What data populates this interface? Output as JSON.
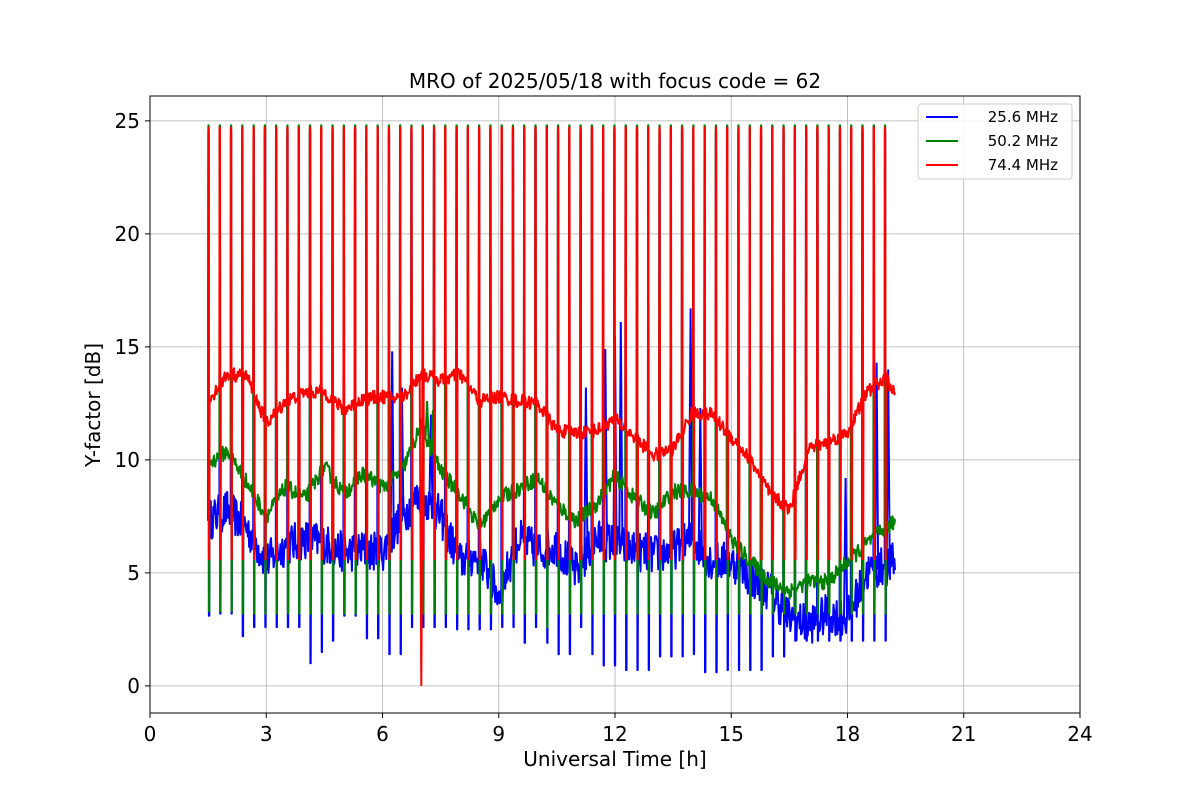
{
  "chart_data": {
    "type": "line",
    "title": "MRO of 2025/05/18 with focus code = 62",
    "xlabel": "Universal Time [h]",
    "ylabel": "Y-factor [dB]",
    "xlim": [
      0,
      24
    ],
    "ylim": [
      -1.2,
      26.1
    ],
    "xticks": [
      0,
      3,
      6,
      9,
      12,
      15,
      18,
      21,
      24
    ],
    "yticks": [
      0,
      5,
      10,
      15,
      20,
      25
    ],
    "grid": true,
    "legend_position": "upper right",
    "x_start": 1.5,
    "x_end": 19.25,
    "sweep_count": 61,
    "series": [
      {
        "name": "25.6 MHz",
        "color": "#0000ff",
        "baseline": {
          "x": [
            1.5,
            2.0,
            2.5,
            3.0,
            3.5,
            4.0,
            4.5,
            5.0,
            5.5,
            6.0,
            6.5,
            7.0,
            7.5,
            8.0,
            8.5,
            9.0,
            9.5,
            10.0,
            10.5,
            11.0,
            11.5,
            12.0,
            12.5,
            13.0,
            13.5,
            14.0,
            14.5,
            15.0,
            15.5,
            16.0,
            16.5,
            17.0,
            17.5,
            18.0,
            18.5,
            19.0,
            19.25
          ],
          "y": [
            7.3,
            7.8,
            7.0,
            5.5,
            6.2,
            6.5,
            6.3,
            5.9,
            6.0,
            5.9,
            7.5,
            8.5,
            7.5,
            5.5,
            5.8,
            4.0,
            6.5,
            6.0,
            6.2,
            5.0,
            6.5,
            6.3,
            6.0,
            5.8,
            6.0,
            6.5,
            5.5,
            5.5,
            4.8,
            4.2,
            3.0,
            2.7,
            3.2,
            3.0,
            5.0,
            5.3,
            5.5
          ]
        },
        "sweep_peak": 24.5,
        "sweep_min": [
          3.1,
          3.2,
          3.2,
          2.2,
          2.6,
          2.6,
          2.6,
          2.6,
          2.6,
          1.0,
          1.5,
          2.0,
          3.1,
          3.1,
          2.1,
          2.1,
          1.4,
          1.4,
          2.6,
          2.6,
          2.6,
          2.6,
          2.5,
          2.5,
          2.5,
          2.5,
          2.6,
          2.6,
          1.9,
          2.6,
          1.9,
          1.4,
          1.4,
          2.6,
          1.4,
          0.9,
          0.9,
          0.7,
          0.7,
          0.7,
          1.3,
          1.3,
          1.3,
          1.4,
          0.6,
          0.6,
          0.7,
          0.7,
          0.7,
          0.7,
          1.3,
          1.3,
          2.0,
          2.0,
          2.0,
          2.0,
          2.0,
          2.0,
          2.0,
          2.0,
          2.0
        ],
        "spikes": [
          {
            "x": 6.25,
            "y": 14.8
          },
          {
            "x": 6.5,
            "y": 13.2
          },
          {
            "x": 11.75,
            "y": 14.9
          },
          {
            "x": 12.15,
            "y": 16.1
          },
          {
            "x": 12.0,
            "y": 15.5
          },
          {
            "x": 13.95,
            "y": 16.7
          },
          {
            "x": 11.25,
            "y": 13.2
          },
          {
            "x": 18.75,
            "y": 14.3
          },
          {
            "x": 19.05,
            "y": 14.0
          },
          {
            "x": 17.95,
            "y": 9.2
          },
          {
            "x": 7.25,
            "y": 12.0
          },
          {
            "x": 14.2,
            "y": 12.3
          }
        ]
      },
      {
        "name": "50.2 MHz",
        "color": "#008000",
        "baseline": {
          "x": [
            1.5,
            2.0,
            2.5,
            3.0,
            3.5,
            4.0,
            4.5,
            5.0,
            5.5,
            6.0,
            6.5,
            7.0,
            7.5,
            8.0,
            8.5,
            9.0,
            9.5,
            10.0,
            10.5,
            11.0,
            11.5,
            12.0,
            12.5,
            13.0,
            13.5,
            14.0,
            14.5,
            15.0,
            15.5,
            16.0,
            16.5,
            17.0,
            17.5,
            18.0,
            18.5,
            19.0,
            19.25
          ],
          "y": [
            9.8,
            10.4,
            9.0,
            7.5,
            8.8,
            8.3,
            9.7,
            8.5,
            9.4,
            8.8,
            9.5,
            11.5,
            9.5,
            8.5,
            7.0,
            8.3,
            8.7,
            9.2,
            8.0,
            7.3,
            8.0,
            9.3,
            8.3,
            7.6,
            8.6,
            8.6,
            8.3,
            6.5,
            5.5,
            4.6,
            4.2,
            4.6,
            4.6,
            5.5,
            6.3,
            7.0,
            7.3
          ]
        },
        "sweep_peak": 24.8,
        "sweep_min": [
          3.3,
          3.3,
          3.3,
          3.2,
          3.2,
          3.2,
          3.2,
          3.2,
          3.2,
          3.2,
          3.2,
          3.2,
          3.2,
          3.2,
          3.2,
          3.2,
          3.2,
          3.2,
          3.2,
          3.2,
          3.2,
          3.2,
          3.2,
          3.2,
          3.2,
          3.2,
          3.2,
          3.2,
          3.2,
          3.2,
          2.6,
          3.2,
          3.2,
          3.2,
          3.2,
          3.2,
          3.2,
          3.2,
          3.2,
          3.2,
          3.2,
          3.2,
          3.2,
          3.2,
          3.2,
          3.2,
          3.2,
          3.2,
          3.2,
          3.2,
          3.2,
          3.2,
          3.2,
          3.2,
          3.2,
          3.2,
          3.2,
          3.2,
          3.2,
          3.2,
          3.2
        ],
        "spikes": [
          {
            "x": 7.15,
            "y": 12.6
          },
          {
            "x": 7.3,
            "y": 12.2
          }
        ]
      },
      {
        "name": "74.4 MHz",
        "color": "#ff0000",
        "baseline": {
          "x": [
            1.5,
            2.0,
            2.5,
            3.0,
            3.5,
            4.0,
            4.5,
            5.0,
            5.5,
            6.0,
            6.5,
            7.0,
            7.5,
            8.0,
            8.5,
            9.0,
            9.5,
            10.0,
            10.5,
            11.0,
            11.5,
            12.0,
            12.5,
            13.0,
            13.5,
            14.0,
            14.5,
            15.0,
            15.5,
            16.0,
            16.5,
            17.0,
            17.5,
            18.0,
            18.5,
            19.0,
            19.25
          ],
          "y": [
            12.6,
            13.8,
            13.7,
            11.6,
            12.6,
            13.0,
            13.0,
            12.2,
            12.7,
            12.8,
            12.7,
            13.8,
            13.5,
            13.8,
            12.6,
            12.8,
            12.6,
            12.5,
            11.3,
            11.2,
            11.3,
            11.8,
            11.0,
            10.2,
            10.5,
            12.1,
            12.0,
            11.0,
            10.0,
            8.5,
            7.8,
            10.5,
            10.8,
            11.2,
            13.0,
            13.6,
            12.8
          ]
        },
        "sweep_peak": 24.7,
        "sweep_min": [
          5.6,
          5.6,
          5.6,
          5.6,
          5.6,
          5.6,
          5.6,
          5.6,
          5.6,
          5.6,
          5.6,
          5.6,
          5.6,
          5.6,
          5.6,
          5.6,
          5.6,
          5.6,
          5.6,
          5.6,
          5.6,
          5.6,
          5.6,
          5.6,
          5.6,
          5.6,
          5.6,
          5.6,
          5.6,
          5.6,
          5.6,
          5.6,
          5.6,
          5.6,
          5.6,
          5.6,
          5.6,
          5.6,
          5.6,
          5.6,
          5.6,
          5.6,
          5.6,
          5.6,
          5.6,
          5.6,
          5.6,
          5.6,
          5.6,
          5.6,
          5.6,
          5.6,
          5.6,
          5.6,
          5.6,
          5.6,
          5.6,
          5.6,
          5.6,
          5.6,
          5.6
        ],
        "spikes": [
          {
            "x": 7.0,
            "y": 0.0
          }
        ]
      }
    ]
  }
}
